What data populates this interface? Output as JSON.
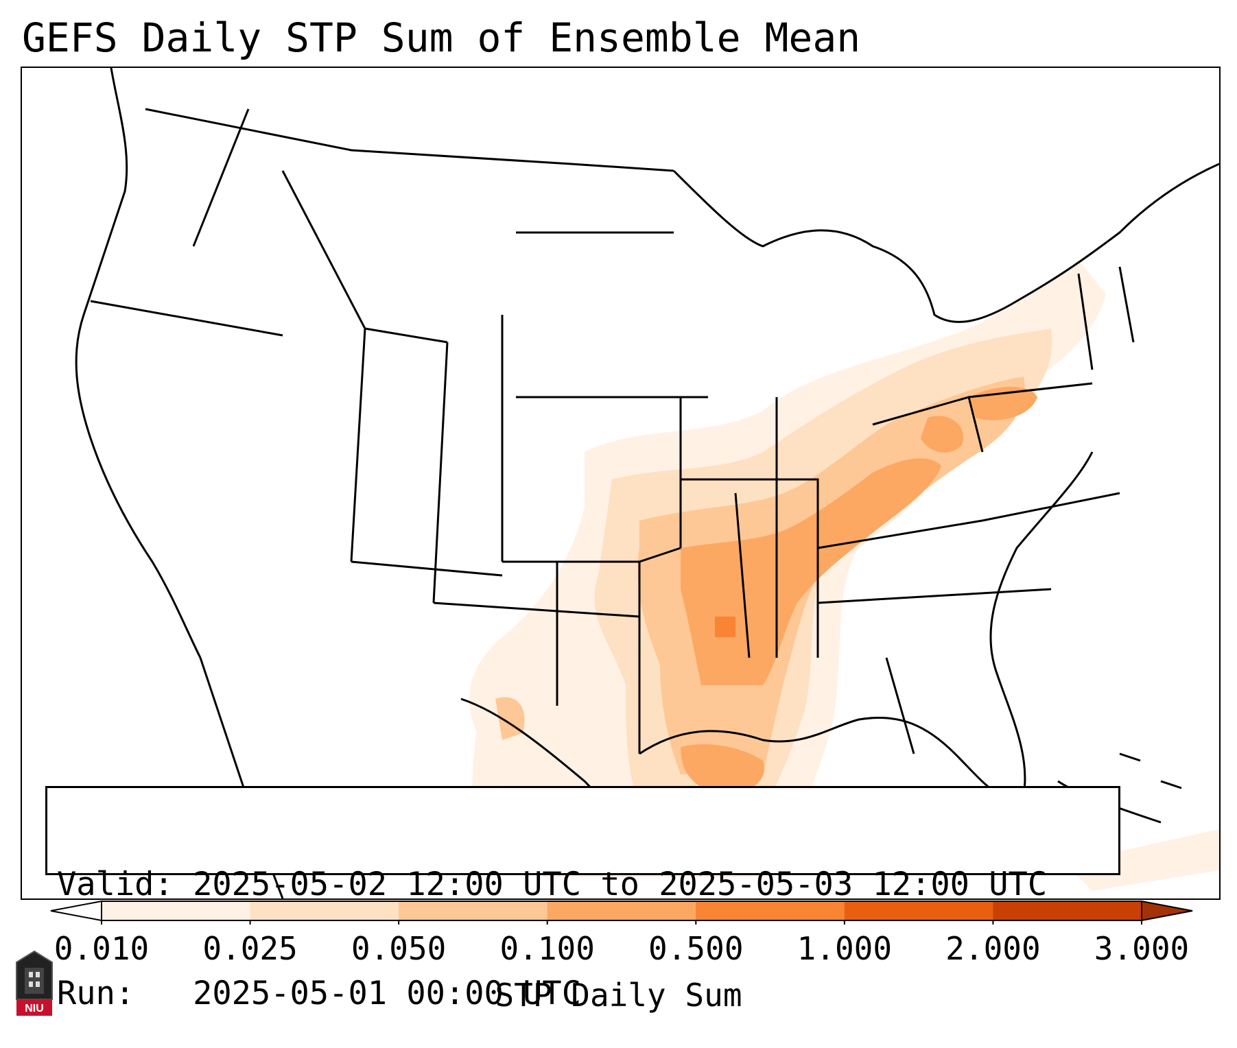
{
  "title": "GEFS Daily STP Sum of Ensemble Mean",
  "info": {
    "valid_line": "Valid: 2025-05-02 12:00 UTC to 2025-05-03 12:00 UTC",
    "run_line": "Run:   2025-05-01 00:00 UTC"
  },
  "colorbar": {
    "label": "STP Daily Sum",
    "ticks": [
      "0.010",
      "0.025",
      "0.050",
      "0.100",
      "0.500",
      "1.000",
      "2.000",
      "3.000"
    ],
    "colors": [
      "#fff1e4",
      "#fee0c2",
      "#fdc895",
      "#fca863",
      "#f98434",
      "#e8600f",
      "#c84003"
    ]
  },
  "map": {
    "region": "Contiguous United States",
    "field": "STP daily sum, shaded in orange"
  },
  "logo": {
    "text": "NIU",
    "color": "#c8102e"
  }
}
